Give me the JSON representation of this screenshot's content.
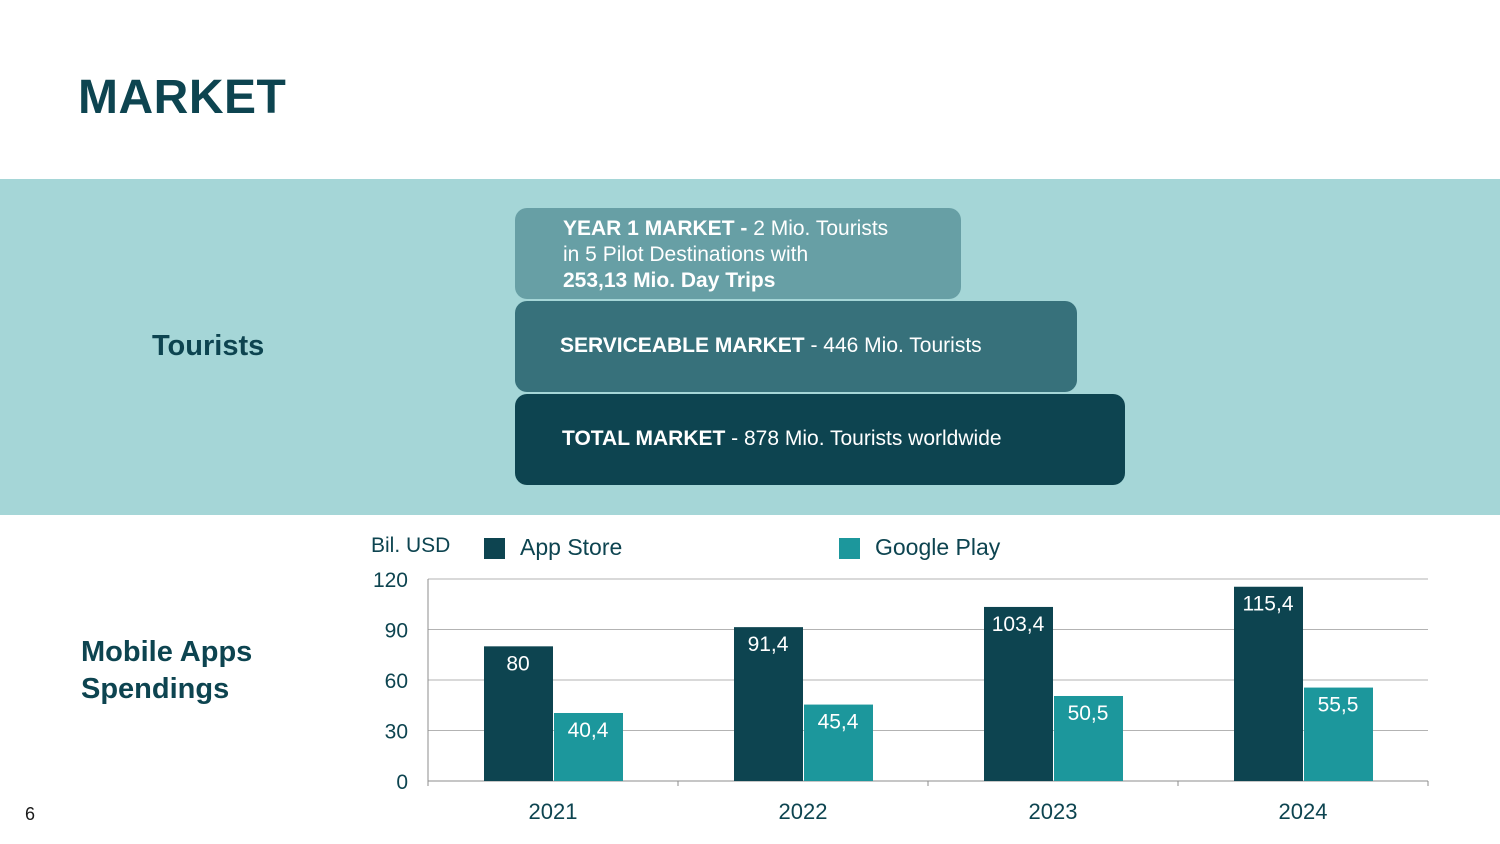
{
  "slide": {
    "title": "MARKET",
    "page_number": "6"
  },
  "tourists": {
    "label": "Tourists",
    "year1": {
      "heading": "YEAR 1 MARKET -",
      "line1_rest": " 2 Mio. Tourists",
      "line2": "in 5 Pilot Destinations with",
      "line3": "253,13 Mio. Day Trips",
      "color": "#679fa5"
    },
    "serviceable": {
      "heading": "SERVICEABLE MARKET",
      "rest": " - 446 Mio. Tourists",
      "color": "#37717b"
    },
    "total": {
      "heading": "TOTAL MARKET",
      "rest": " - 878 Mio. Tourists worldwide",
      "color": "#0d4450"
    },
    "band_color": "#a5d6d7"
  },
  "mobile": {
    "label_line1": "Mobile Apps",
    "label_line2": "Spendings"
  },
  "chart_data": {
    "type": "bar",
    "title": "",
    "ylabel": "Bil. USD",
    "xlabel": "",
    "categories": [
      "2021",
      "2022",
      "2023",
      "2024"
    ],
    "series": [
      {
        "name": "App Store",
        "values": [
          80,
          91.4,
          103.4,
          115.4
        ],
        "labels": [
          "80",
          "91,4",
          "103,4",
          "115,4"
        ],
        "color": "#0d4450"
      },
      {
        "name": "Google Play",
        "values": [
          40.4,
          45.4,
          50.5,
          55.5
        ],
        "labels": [
          "40,4",
          "45,4",
          "50,5",
          "55,5"
        ],
        "color": "#1c979c"
      }
    ],
    "ylim": [
      0,
      120
    ],
    "yticks": [
      0,
      30,
      60,
      90,
      120
    ],
    "grid": true,
    "legend_position": "top"
  }
}
